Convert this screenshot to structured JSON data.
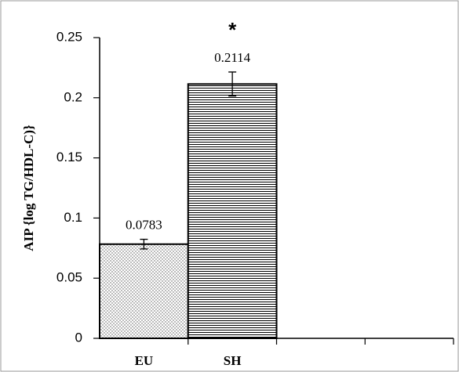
{
  "chart_data": {
    "type": "bar",
    "y_label": "AIP {log TG/HDL-C)}",
    "categories": [
      "EU",
      "SH",
      null,
      null
    ],
    "values": [
      0.0783,
      0.2114,
      null,
      null
    ],
    "errors": [
      0.004,
      0.01,
      null,
      null
    ],
    "annotation": "*",
    "annotation_category": 1,
    "color": "#000000",
    "ylim": [
      0,
      0.25
    ],
    "yticks": [
      0,
      0.05,
      0.1,
      0.15,
      0.2,
      0.25
    ],
    "grid": false
  }
}
